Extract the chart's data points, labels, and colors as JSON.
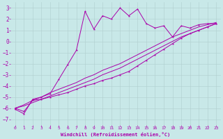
{
  "background_color": "#c8e8e8",
  "grid_color": "#b0cece",
  "line_color": "#aa00aa",
  "marker_color": "#aa00aa",
  "xlabel": "Windchill (Refroidissement éolien,°C)",
  "xlabel_color": "#aa00aa",
  "tick_color": "#aa00aa",
  "xlim": [
    -0.5,
    23.5
  ],
  "ylim": [
    -7.5,
    3.5
  ],
  "yticks": [
    -7,
    -6,
    -5,
    -4,
    -3,
    -2,
    -1,
    0,
    1,
    2,
    3
  ],
  "xticks": [
    0,
    1,
    2,
    3,
    4,
    5,
    6,
    7,
    8,
    9,
    10,
    11,
    12,
    13,
    14,
    15,
    16,
    17,
    18,
    19,
    20,
    21,
    22,
    23
  ],
  "series1_x": [
    0,
    1,
    2,
    3,
    4,
    5,
    6,
    7,
    8,
    9,
    10,
    11,
    12,
    13,
    14,
    15,
    16,
    17,
    18,
    19,
    20,
    21,
    22,
    23
  ],
  "series1_y": [
    -6.1,
    -6.5,
    -5.2,
    -5.0,
    -4.7,
    -3.4,
    -2.1,
    -0.8,
    2.7,
    1.1,
    2.3,
    2.0,
    3.0,
    2.3,
    2.9,
    1.6,
    1.2,
    1.4,
    0.4,
    1.4,
    1.2,
    1.5,
    1.6,
    1.6
  ],
  "series2_x": [
    0,
    1,
    2,
    3,
    4,
    5,
    6,
    7,
    8,
    9,
    10,
    11,
    12,
    13,
    14,
    15,
    16,
    17,
    18,
    19,
    20,
    21,
    22,
    23
  ],
  "series2_y": [
    -6.0,
    -6.3,
    -5.3,
    -5.2,
    -5.0,
    -4.8,
    -4.6,
    -4.3,
    -4.0,
    -3.8,
    -3.5,
    -3.3,
    -3.0,
    -2.7,
    -2.2,
    -1.7,
    -1.2,
    -0.7,
    -0.2,
    0.3,
    0.7,
    1.0,
    1.3,
    1.6
  ],
  "series3_x": [
    0,
    1,
    2,
    3,
    4,
    5,
    6,
    7,
    8,
    9,
    10,
    11,
    12,
    13,
    14,
    15,
    16,
    17,
    18,
    19,
    20,
    21,
    22,
    23
  ],
  "series3_y": [
    -6.0,
    -5.8,
    -5.5,
    -5.2,
    -4.9,
    -4.6,
    -4.3,
    -4.0,
    -3.7,
    -3.4,
    -3.0,
    -2.7,
    -2.4,
    -2.0,
    -1.6,
    -1.2,
    -0.8,
    -0.4,
    0.0,
    0.4,
    0.7,
    1.0,
    1.3,
    1.6
  ],
  "series4_x": [
    0,
    1,
    2,
    3,
    4,
    5,
    6,
    7,
    8,
    9,
    10,
    11,
    12,
    13,
    14,
    15,
    16,
    17,
    18,
    19,
    20,
    21,
    22,
    23
  ],
  "series4_y": [
    -6.0,
    -5.7,
    -5.3,
    -5.0,
    -4.6,
    -4.3,
    -4.0,
    -3.7,
    -3.3,
    -3.0,
    -2.6,
    -2.3,
    -2.0,
    -1.6,
    -1.2,
    -0.8,
    -0.4,
    0.0,
    0.4,
    0.7,
    1.0,
    1.3,
    1.5,
    1.7
  ]
}
